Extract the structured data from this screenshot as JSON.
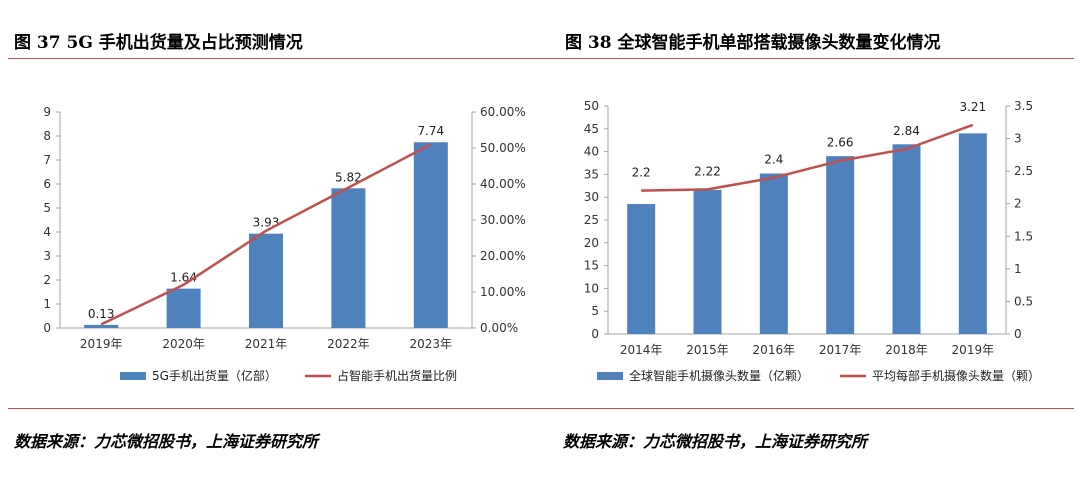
{
  "header": {
    "left_title": "图 37 5G 手机出货量及占比预测情况",
    "right_title": "图 38 全球智能手机单部搭载摄像头数量变化情况"
  },
  "footer": {
    "left_source": "数据来源：力芯微招股书，上海证券研究所",
    "right_source": "数据来源：力芯微招股书，上海证券研究所"
  },
  "colors": {
    "bar": "#4f81bd",
    "line": "#c0504d",
    "rule": "#c0504d",
    "axis": "#a6a6a6"
  },
  "chart_data": [
    {
      "type": "bar",
      "combo": "bar+line",
      "title": "",
      "categories": [
        "2019年",
        "2020年",
        "2021年",
        "2022年",
        "2023年"
      ],
      "series": [
        {
          "name": "5G手机出货量（亿部）",
          "type": "bar",
          "axis": "left",
          "values": [
            0.13,
            1.64,
            3.93,
            5.82,
            7.74
          ],
          "labels": [
            "0.13",
            "1.64",
            "3.93",
            "5.82",
            "7.74"
          ]
        },
        {
          "name": "占智能手机出货量比例",
          "type": "line",
          "axis": "right",
          "values": [
            0.01,
            0.12,
            0.27,
            0.39,
            0.51
          ]
        }
      ],
      "ylim_left": [
        0,
        9
      ],
      "yticks_left": [
        "0",
        "1",
        "2",
        "3",
        "4",
        "5",
        "6",
        "7",
        "8",
        "9"
      ],
      "ylim_right": [
        0,
        0.6
      ],
      "yticks_right": [
        "0.00%",
        "10.00%",
        "20.00%",
        "30.00%",
        "40.00%",
        "50.00%",
        "60.00%"
      ],
      "grid": false,
      "legend_position": "bottom"
    },
    {
      "type": "bar",
      "combo": "bar+line",
      "title": "",
      "categories": [
        "2014年",
        "2015年",
        "2016年",
        "2017年",
        "2018年",
        "2019年"
      ],
      "series": [
        {
          "name": "全球智能手机摄像头数量（亿颗）",
          "type": "bar",
          "axis": "left",
          "values": [
            28.5,
            31.6,
            35.2,
            39.0,
            41.6,
            44.0
          ]
        },
        {
          "name": "平均每部手机摄像头数量（颗）",
          "type": "line",
          "axis": "right",
          "values": [
            2.2,
            2.22,
            2.4,
            2.66,
            2.84,
            3.21
          ],
          "labels": [
            "2.2",
            "2.22",
            "2.4",
            "2.66",
            "2.84",
            "3.21"
          ]
        }
      ],
      "ylim_left": [
        0,
        50
      ],
      "yticks_left": [
        "0",
        "5",
        "10",
        "15",
        "20",
        "25",
        "30",
        "35",
        "40",
        "45",
        "50"
      ],
      "ylim_right": [
        0,
        3.5
      ],
      "yticks_right": [
        "0",
        "0.5",
        "1",
        "1.5",
        "2",
        "2.5",
        "3",
        "3.5"
      ],
      "grid": false,
      "legend_position": "bottom"
    }
  ]
}
